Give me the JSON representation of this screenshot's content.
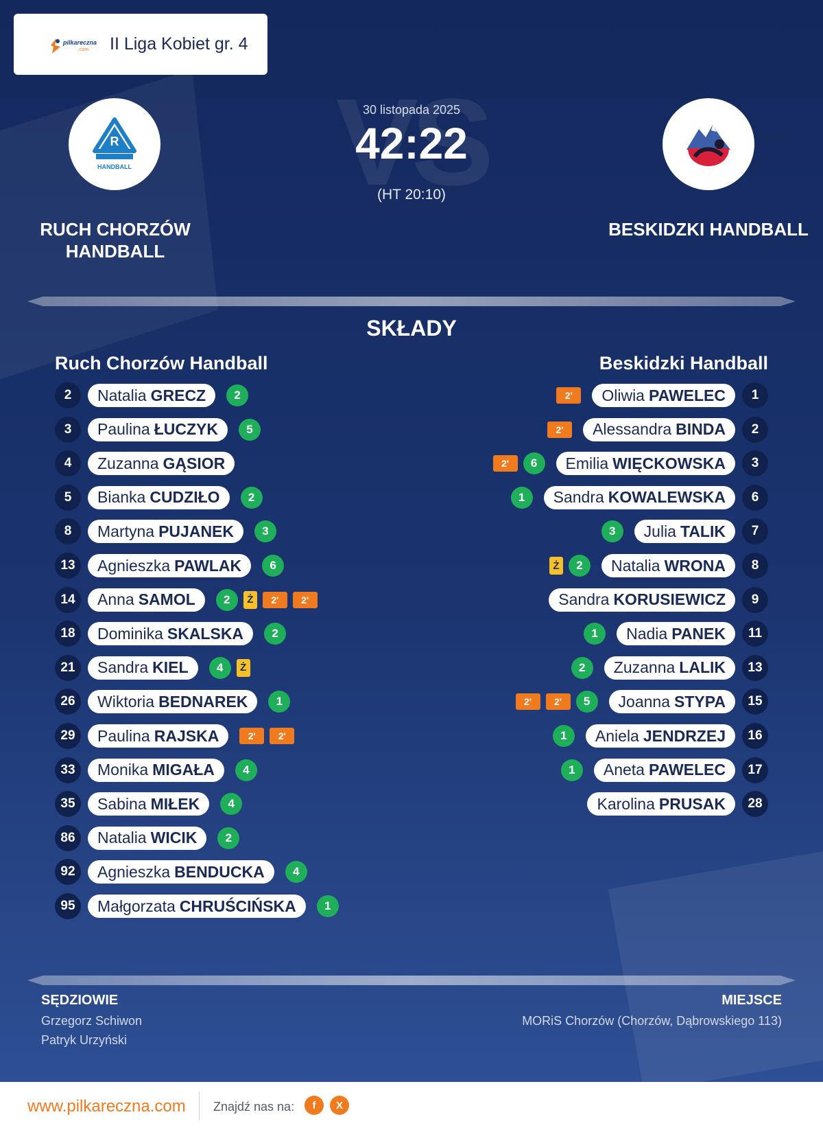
{
  "header": {
    "site_logo_text": "pilkareczna",
    "site_logo_sub": ".com",
    "league": "II Liga Kobiet gr. 4"
  },
  "match": {
    "date": "30 listopada 2025",
    "score": "42:22",
    "half_time": "(HT 20:10)",
    "vs": "VS",
    "home_team": "RUCH CHORZÓW HANDBALL",
    "away_team": "BESKIDZKI HANDBALL",
    "home_crest_text": "HANDBALL"
  },
  "lineups": {
    "title": "SKŁADY",
    "home": {
      "team": "Ruch Chorzów Handball",
      "players": [
        {
          "number": "2",
          "first": "Natalia",
          "last": "GRECZ",
          "goals": "2",
          "yellow": 0,
          "susp": 0
        },
        {
          "number": "3",
          "first": "Paulina",
          "last": "ŁUCZYK",
          "goals": "5",
          "yellow": 0,
          "susp": 0
        },
        {
          "number": "4",
          "first": "Zuzanna",
          "last": "GĄSIOR",
          "goals": "",
          "yellow": 0,
          "susp": 0
        },
        {
          "number": "5",
          "first": "Bianka",
          "last": "CUDZIŁO",
          "goals": "2",
          "yellow": 0,
          "susp": 0
        },
        {
          "number": "8",
          "first": "Martyna",
          "last": "PUJANEK",
          "goals": "3",
          "yellow": 0,
          "susp": 0
        },
        {
          "number": "13",
          "first": "Agnieszka",
          "last": "PAWLAK",
          "goals": "6",
          "yellow": 0,
          "susp": 0
        },
        {
          "number": "14",
          "first": "Anna",
          "last": "SAMOL",
          "goals": "2",
          "yellow": 1,
          "susp": 2
        },
        {
          "number": "18",
          "first": "Dominika",
          "last": "SKALSKA",
          "goals": "2",
          "yellow": 0,
          "susp": 0
        },
        {
          "number": "21",
          "first": "Sandra",
          "last": "KIEL",
          "goals": "4",
          "yellow": 1,
          "susp": 0
        },
        {
          "number": "26",
          "first": "Wiktoria",
          "last": "BEDNAREK",
          "goals": "1",
          "yellow": 0,
          "susp": 0
        },
        {
          "number": "29",
          "first": "Paulina",
          "last": "RAJSKA",
          "goals": "",
          "yellow": 0,
          "susp": 2
        },
        {
          "number": "33",
          "first": "Monika",
          "last": "MIGAŁA",
          "goals": "4",
          "yellow": 0,
          "susp": 0
        },
        {
          "number": "35",
          "first": "Sabina",
          "last": "MIŁEK",
          "goals": "4",
          "yellow": 0,
          "susp": 0
        },
        {
          "number": "86",
          "first": "Natalia",
          "last": "WICIK",
          "goals": "2",
          "yellow": 0,
          "susp": 0
        },
        {
          "number": "92",
          "first": "Agnieszka",
          "last": "BENDUCKA",
          "goals": "4",
          "yellow": 0,
          "susp": 0
        },
        {
          "number": "95",
          "first": "Małgorzata",
          "last": "CHRUŚCIŃSKA",
          "goals": "1",
          "yellow": 0,
          "susp": 0
        }
      ]
    },
    "away": {
      "team": "Beskidzki Handball",
      "players": [
        {
          "number": "1",
          "first": "Oliwia",
          "last": "PAWELEC",
          "goals": "",
          "yellow": 0,
          "susp": 1
        },
        {
          "number": "2",
          "first": "Alessandra",
          "last": "BINDA",
          "goals": "",
          "yellow": 0,
          "susp": 1
        },
        {
          "number": "3",
          "first": "Emilia",
          "last": "WIĘCKOWSKA",
          "goals": "6",
          "yellow": 0,
          "susp": 1
        },
        {
          "number": "6",
          "first": "Sandra",
          "last": "KOWALEWSKA",
          "goals": "1",
          "yellow": 0,
          "susp": 0
        },
        {
          "number": "7",
          "first": "Julia",
          "last": "TALIK",
          "goals": "3",
          "yellow": 0,
          "susp": 0
        },
        {
          "number": "8",
          "first": "Natalia",
          "last": "WRONA",
          "goals": "2",
          "yellow": 1,
          "susp": 0
        },
        {
          "number": "9",
          "first": "Sandra",
          "last": "KORUSIEWICZ",
          "goals": "",
          "yellow": 0,
          "susp": 0
        },
        {
          "number": "11",
          "first": "Nadia",
          "last": "PANEK",
          "goals": "1",
          "yellow": 0,
          "susp": 0
        },
        {
          "number": "13",
          "first": "Zuzanna",
          "last": "LALIK",
          "goals": "2",
          "yellow": 0,
          "susp": 0
        },
        {
          "number": "15",
          "first": "Joanna",
          "last": "STYPA",
          "goals": "5",
          "yellow": 0,
          "susp": 2
        },
        {
          "number": "16",
          "first": "Aniela",
          "last": "JENDRZEJ",
          "goals": "1",
          "yellow": 0,
          "susp": 0
        },
        {
          "number": "17",
          "first": "Aneta",
          "last": "PAWELEC",
          "goals": "1",
          "yellow": 0,
          "susp": 0
        },
        {
          "number": "28",
          "first": "Karolina",
          "last": "PRUSAK",
          "goals": "",
          "yellow": 0,
          "susp": 0
        }
      ]
    },
    "yellow_label": "Ż",
    "susp_label": "2'"
  },
  "officials": {
    "label": "SĘDZIOWIE",
    "names": [
      "Grzegorz Schiwon",
      "Patryk Urzyński"
    ]
  },
  "venue": {
    "label": "MIEJSCE",
    "text": "MORiS Chorzów (Chorzów, Dąbrowskiego 113)"
  },
  "footer": {
    "site": "www.pilkareczna.com",
    "find_us": "Znajdź nas na:",
    "facebook_icon": "f",
    "x_icon": "X"
  },
  "colors": {
    "background_top": "#13285c",
    "background_bottom": "#2e4f94",
    "goals": "#1fae5a",
    "yellow_card": "#f6c026",
    "suspension": "#f07a1e",
    "number_badge": "#10214d",
    "accent": "#f07a1e"
  }
}
